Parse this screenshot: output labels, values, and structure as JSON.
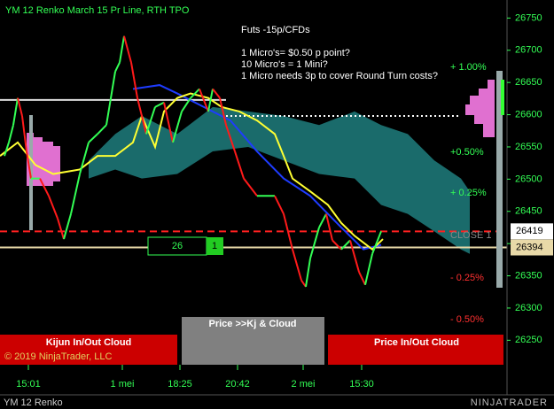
{
  "chart_data": {
    "type": "line",
    "title": "YM 12 Renko March 15 Pr Line, RTH TPO",
    "annotations": [
      "Futs -15p/CFDs",
      "1 Micro's= $0.50 p point?",
      "10 Micro's = 1 Mini?",
      "1 Micro needs 3p to cover Round Turn costs?"
    ],
    "xlim": [
      0,
      572
    ],
    "ylim": [
      26212,
      26778
    ],
    "xticks": [
      {
        "value": 32,
        "label": "15:01"
      },
      {
        "value": 138,
        "label": "1 mei"
      },
      {
        "value": 203,
        "label": "18:25"
      },
      {
        "value": 268,
        "label": "20:42"
      },
      {
        "value": 342,
        "label": "2 mei"
      },
      {
        "value": 408,
        "label": "15:30"
      }
    ],
    "yticks": [
      26250,
      26300,
      26350,
      26400,
      26450,
      26500,
      26550,
      26600,
      26650,
      26700,
      26750
    ],
    "grid": false,
    "cloud": {
      "color": "#1a6b6b",
      "x": [
        100,
        130,
        160,
        200,
        240,
        280,
        320,
        360,
        400,
        430,
        460,
        490,
        520,
        530
      ],
      "upper": [
        26529,
        26570,
        26598,
        26570,
        26612,
        26605,
        26598,
        26584,
        26605,
        26584,
        26570,
        26529,
        26501,
        26481
      ],
      "lower": [
        26501,
        26515,
        26501,
        26508,
        26543,
        26550,
        26529,
        26508,
        26501,
        26460,
        26446,
        26419,
        26391,
        26384
      ]
    },
    "series": [
      {
        "color": "#1e3cff",
        "x": [
          150,
          180,
          200,
          230,
          260,
          290,
          320,
          350,
          380,
          410,
          430
        ],
        "values": [
          26640,
          26646,
          26633,
          26612,
          26591,
          26543,
          26501,
          26474,
          26432,
          26391,
          26398
        ]
      },
      {
        "color": "#ffff33",
        "x": [
          0,
          20,
          40,
          60,
          90,
          110,
          130,
          150,
          160,
          175,
          185,
          200,
          215,
          235,
          250,
          270,
          290,
          310,
          320,
          330,
          350,
          370,
          385,
          400,
          420,
          432
        ],
        "values": [
          26536,
          26557,
          26522,
          26508,
          26515,
          26536,
          26536,
          26557,
          26598,
          26550,
          26605,
          26626,
          26633,
          26626,
          26612,
          26605,
          26591,
          26570,
          26536,
          26501,
          26481,
          26460,
          26432,
          26412,
          26391,
          26407
        ]
      },
      {
        "up_color": "#33ff55",
        "down_color": "#ff1a1a",
        "x": [
          5,
          10,
          15,
          20,
          25,
          30,
          35,
          45,
          55,
          65,
          72,
          80,
          90,
          100,
          110,
          120,
          130,
          135,
          140,
          148,
          155,
          165,
          175,
          185,
          195,
          205,
          215,
          225,
          235,
          240,
          248,
          255,
          265,
          275,
          290,
          310,
          320,
          330,
          340,
          345,
          350,
          360,
          368,
          375,
          385,
          395,
          405,
          412,
          420,
          430
        ],
        "values": [
          26536,
          26557,
          26584,
          26626,
          26598,
          26543,
          26501,
          26501,
          26474,
          26439,
          26407,
          26446,
          26508,
          26557,
          26570,
          26584,
          26667,
          26681,
          26722,
          26681,
          26626,
          26570,
          26612,
          26619,
          26557,
          26605,
          26626,
          26640,
          26605,
          26640,
          26626,
          26584,
          26543,
          26501,
          26474,
          26474,
          26446,
          26391,
          26343,
          26333,
          26377,
          26425,
          26446,
          26405,
          26391,
          26405,
          26356,
          26336,
          26384,
          26419
        ]
      }
    ],
    "levels": [
      {
        "value": 26623,
        "color": "#dddddd",
        "dash": "none",
        "x": [
          0,
          255
        ]
      },
      {
        "value": 26598,
        "color": "#ffffff",
        "dash": "2 3",
        "x": [
          255,
          520
        ]
      },
      {
        "value": 26419,
        "color": "#ff2020",
        "dash": "8 5",
        "x": [
          0,
          572
        ]
      },
      {
        "value": 26394,
        "color": "#e8d9a8",
        "dash": "none",
        "x": [
          0,
          572
        ]
      }
    ],
    "price_markers": [
      26419,
      26394
    ],
    "percent_labels": [
      "+ 1.00%",
      "+0.50%",
      "+ 0.25%",
      "CLOSE 1",
      "- 0.25%",
      "- 0.50%"
    ],
    "counter": [
      26,
      1
    ],
    "buttons": [
      "Kijun In/Out Cloud",
      "Price >>Kj & Cloud",
      "Price In/Out Cloud"
    ],
    "copyright": "© 2019 NinjaTrader, LLC",
    "footer": "YM 12 Renko",
    "logo": "NINJATRADER"
  }
}
